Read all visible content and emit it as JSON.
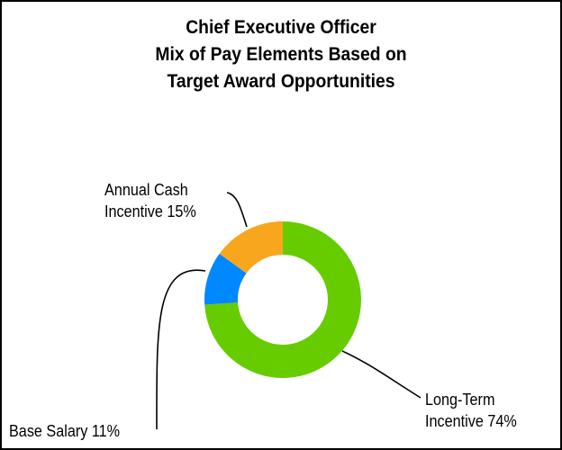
{
  "chart_data": {
    "type": "pie",
    "title_lines": [
      "Chief Executive Officer",
      "Mix of Pay Elements Based on",
      "Target Award Opportunities"
    ],
    "slices": [
      {
        "name": "Long-Term Incentive",
        "value": 74,
        "label_lines": [
          "Long-Term",
          "Incentive 74%"
        ],
        "color": "#66cc00"
      },
      {
        "name": "Base Salary",
        "value": 11,
        "label_lines": [
          "Base Salary 11%"
        ],
        "color": "#0088ff"
      },
      {
        "name": "Annual Cash Incentive",
        "value": 15,
        "label_lines": [
          "Annual Cash",
          "Incentive 15%"
        ],
        "color": "#f9a61f"
      }
    ],
    "style": "donut",
    "legend": "none"
  }
}
